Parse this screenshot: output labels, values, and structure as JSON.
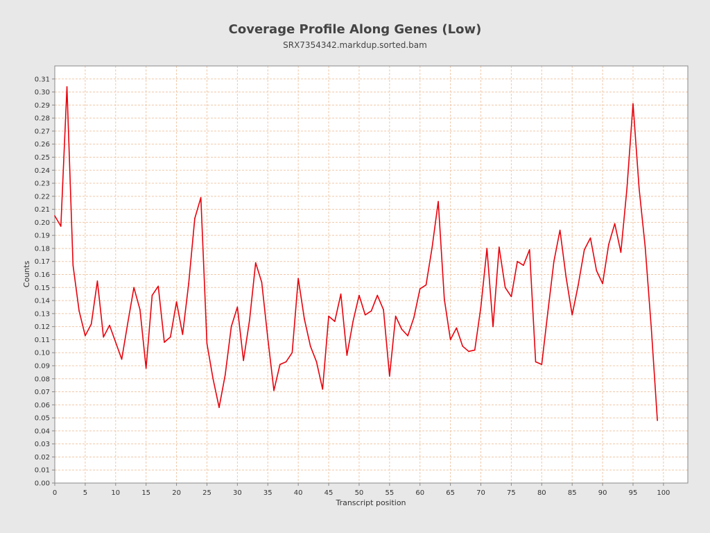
{
  "chart_data": {
    "type": "line",
    "title": "Coverage Profile Along Genes (Low)",
    "subtitle": "SRX7354342.markdup.sorted.bam",
    "xlabel": "Transcript position",
    "ylabel": "Counts",
    "xlim": [
      0,
      104
    ],
    "ylim": [
      0,
      0.32
    ],
    "x_ticks": [
      0,
      5,
      10,
      15,
      20,
      25,
      30,
      35,
      40,
      45,
      50,
      55,
      60,
      65,
      70,
      75,
      80,
      85,
      90,
      95,
      100
    ],
    "y_ticks": [
      0.0,
      0.01,
      0.02,
      0.03,
      0.04,
      0.05,
      0.06,
      0.07,
      0.08,
      0.09,
      0.1,
      0.11,
      0.12,
      0.13,
      0.14,
      0.15,
      0.16,
      0.17,
      0.18,
      0.19,
      0.2,
      0.21,
      0.22,
      0.23,
      0.24,
      0.25,
      0.26,
      0.27,
      0.28,
      0.29,
      0.3,
      0.31
    ],
    "grid": true,
    "legend": "none",
    "colors": {
      "line": "#e8000b",
      "grid": "#f0c8a8",
      "plot_bg": "#ffffff",
      "page_bg": "#e8e8e8",
      "axis": "#888888"
    },
    "series": [
      {
        "x": [
          0,
          1,
          2,
          3,
          4,
          5,
          6,
          7,
          8,
          9,
          10,
          11,
          12,
          13,
          14,
          15,
          16,
          17,
          18,
          19,
          20,
          21,
          22,
          23,
          24,
          25,
          26,
          27,
          28,
          29,
          30,
          31,
          32,
          33,
          34,
          35,
          36,
          37,
          38,
          39,
          40,
          41,
          42,
          43,
          44,
          45,
          46,
          47,
          48,
          49,
          50,
          51,
          52,
          53,
          54,
          55,
          56,
          57,
          58,
          59,
          60,
          61,
          62,
          63,
          64,
          65,
          66,
          67,
          68,
          69,
          70,
          71,
          72,
          73,
          74,
          75,
          76,
          77,
          78,
          79,
          80,
          81,
          82,
          83,
          84,
          85,
          86,
          87,
          88,
          89,
          90,
          91,
          92,
          93,
          94,
          95,
          96,
          97,
          98,
          99
        ],
        "values": [
          0.205,
          0.197,
          0.304,
          0.167,
          0.132,
          0.113,
          0.122,
          0.155,
          0.112,
          0.121,
          0.108,
          0.095,
          0.123,
          0.15,
          0.133,
          0.088,
          0.144,
          0.151,
          0.108,
          0.112,
          0.139,
          0.114,
          0.153,
          0.203,
          0.219,
          0.107,
          0.08,
          0.058,
          0.083,
          0.12,
          0.135,
          0.094,
          0.125,
          0.169,
          0.154,
          0.111,
          0.071,
          0.091,
          0.093,
          0.1,
          0.157,
          0.126,
          0.105,
          0.093,
          0.072,
          0.128,
          0.124,
          0.145,
          0.098,
          0.124,
          0.144,
          0.129,
          0.132,
          0.144,
          0.133,
          0.082,
          0.128,
          0.118,
          0.113,
          0.127,
          0.149,
          0.152,
          0.181,
          0.216,
          0.141,
          0.11,
          0.119,
          0.105,
          0.101,
          0.102,
          0.135,
          0.18,
          0.12,
          0.181,
          0.15,
          0.143,
          0.17,
          0.167,
          0.179,
          0.093,
          0.091,
          0.131,
          0.17,
          0.194,
          0.158,
          0.129,
          0.152,
          0.179,
          0.188,
          0.163,
          0.153,
          0.183,
          0.199,
          0.177,
          0.226,
          0.291,
          0.226,
          0.181,
          0.119,
          0.048
        ]
      }
    ]
  }
}
